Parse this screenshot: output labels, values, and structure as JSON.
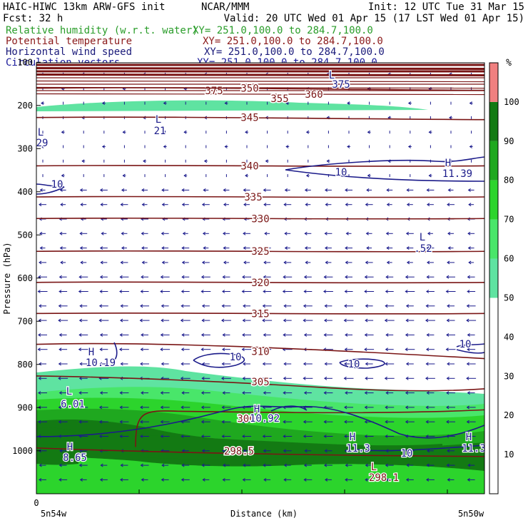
{
  "header": {
    "left_line1": "HAIC-HIWC 13km ARW-GFS init",
    "center_line1": "NCAR/MMM",
    "right_line1": "Init: 12 UTC Tue 31 Mar 15",
    "left_line2": "Fcst:    32 h",
    "right_line2": "Valid: 20 UTC Wed 01 Apr 15 (17 LST Wed 01 Apr 15)",
    "fields": [
      {
        "name": "Relative humidity (w.r.t. water)",
        "xy": "XY= 251.0,100.0 to 284.7,100.0",
        "color": "#2a9d2a"
      },
      {
        "name": "Potential temperature",
        "xy": "XY= 251.0,100.0 to 284.7,100.0",
        "color": "#8b1a1a"
      },
      {
        "name": "Horizontal wind speed",
        "xy": "XY= 251.0,100.0 to 284.7,100.0",
        "color": "#1a1a7a"
      },
      {
        "name": "Circulation vectors",
        "xy": "XY= 251.0,100.0 to 284.7,100.0",
        "color": "#1a1a9a"
      }
    ]
  },
  "chart_data": {
    "type": "heatmap",
    "ylabel": "Pressure (hPa)",
    "xlabel": "Distance (km)",
    "y_ticks": [
      100,
      200,
      300,
      400,
      500,
      600,
      700,
      800,
      900,
      1000
    ],
    "ylim": [
      50,
      1050
    ],
    "x_tick_zero": "0",
    "x_left_label": "5n54w",
    "x_right_label": "5n50w",
    "colorbar": {
      "unit": "%",
      "levels": [
        10,
        20,
        30,
        40,
        50,
        60,
        70,
        80,
        90,
        100
      ],
      "bands": [
        {
          "range": [
            0,
            50
          ],
          "color": "#ffffff"
        },
        {
          "range": [
            50,
            60
          ],
          "color": "#5fe3a1"
        },
        {
          "range": [
            60,
            70
          ],
          "color": "#49e66a"
        },
        {
          "range": [
            70,
            80
          ],
          "color": "#2cd42c"
        },
        {
          "range": [
            80,
            90
          ],
          "color": "#1fa81f"
        },
        {
          "range": [
            90,
            100
          ],
          "color": "#137a13"
        },
        {
          "range": [
            100,
            110
          ],
          "color": "#f08080"
        }
      ]
    },
    "theta_contours": [
      {
        "label": "375",
        "p": 118
      },
      {
        "label": "360",
        "p": 130
      },
      {
        "label": "355",
        "p": 136
      },
      {
        "label": "350",
        "p": 160
      },
      {
        "label": "345",
        "p": 228
      },
      {
        "label": "340",
        "p": 340
      },
      {
        "label": "335",
        "p": 412
      },
      {
        "label": "330",
        "p": 462
      },
      {
        "label": "325",
        "p": 538
      },
      {
        "label": "320",
        "p": 610
      },
      {
        "label": "315",
        "p": 682
      },
      {
        "label": "310",
        "p": 770
      },
      {
        "label": "305",
        "p": 840
      },
      {
        "label": "300",
        "p": 925
      },
      {
        "label": "298.5",
        "p": 1000
      }
    ],
    "wind_labels": [
      {
        "text": "10",
        "kind": "contour"
      },
      {
        "text": "10",
        "kind": "contour"
      },
      {
        "text": "10",
        "kind": "contour"
      },
      {
        "text": "10",
        "kind": "contour"
      },
      {
        "text": "10",
        "kind": "contour"
      },
      {
        "text": "10",
        "kind": "contour"
      },
      {
        "text": "L",
        "kind": "marker"
      },
      {
        "text": "29",
        "kind": "value"
      },
      {
        "text": "L",
        "kind": "marker"
      },
      {
        "text": "21",
        "kind": "value"
      },
      {
        "text": "H",
        "kind": "marker"
      },
      {
        "text": "11.39",
        "kind": "value"
      },
      {
        "text": "L",
        "kind": "marker"
      },
      {
        "text": ".52",
        "kind": "value"
      },
      {
        "text": "H",
        "kind": "marker"
      },
      {
        "text": "10.19",
        "kind": "value"
      },
      {
        "text": "L",
        "kind": "marker"
      },
      {
        "text": "6.01",
        "kind": "value"
      },
      {
        "text": "H",
        "kind": "marker"
      },
      {
        "text": "10.92",
        "kind": "value"
      },
      {
        "text": "H",
        "kind": "marker"
      },
      {
        "text": "8.65",
        "kind": "value"
      },
      {
        "text": "H",
        "kind": "marker"
      },
      {
        "text": "11.3",
        "kind": "value"
      },
      {
        "text": "L",
        "kind": "marker"
      },
      {
        "text": "298.1",
        "kind": "value"
      },
      {
        "text": "H",
        "kind": "marker"
      },
      {
        "text": "11.3",
        "kind": "value"
      },
      {
        "text": "L",
        "kind": "marker"
      },
      {
        "text": "375",
        "kind": "value"
      }
    ]
  }
}
